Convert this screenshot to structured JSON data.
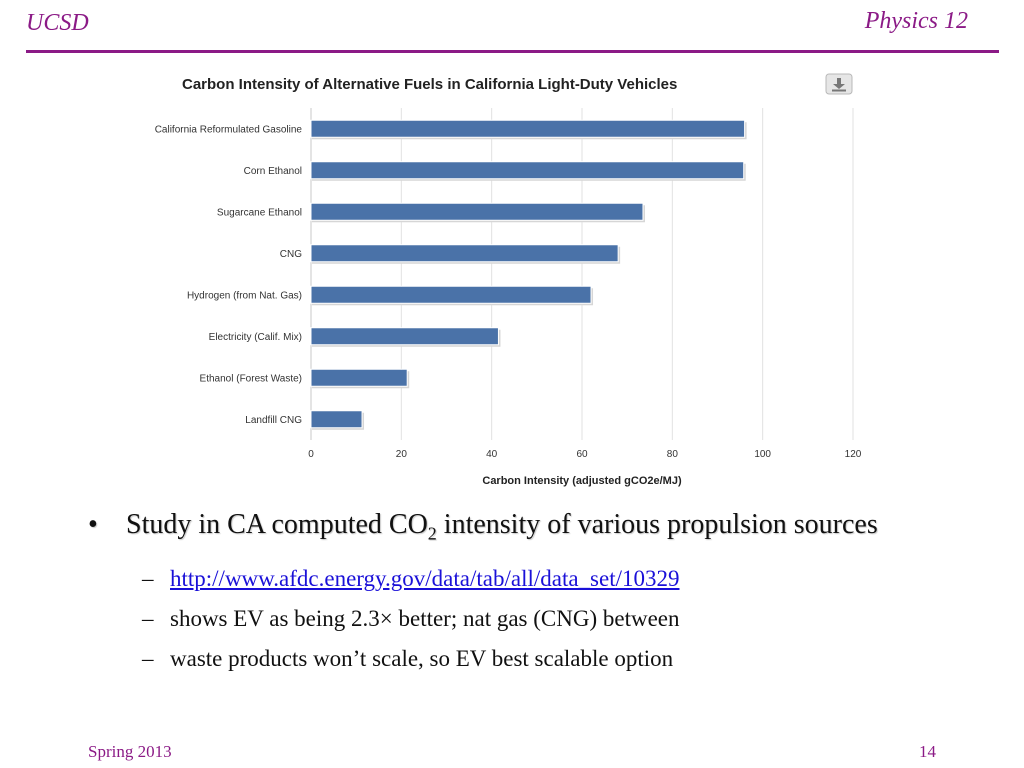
{
  "slide": {
    "header_left": "UCSD",
    "header_right": "Physics 12",
    "footer_left": "Spring 2013",
    "footer_right": "14"
  },
  "chart_data": {
    "type": "bar",
    "orientation": "horizontal",
    "title": "Carbon Intensity of Alternative Fuels in California Light-Duty Vehicles",
    "xlabel": "Carbon Intensity (adjusted gCO2e/MJ)",
    "ylabel": "",
    "xlim": [
      0,
      120
    ],
    "xticks": [
      0,
      20,
      40,
      60,
      80,
      100,
      120
    ],
    "grid": true,
    "bar_color": "#4a72a8",
    "categories": [
      "California Reformulated Gasoline",
      "Corn Ethanol",
      "Sugarcane Ethanol",
      "CNG",
      "Hydrogen (from Nat. Gas)",
      "Electricity (Calif. Mix)",
      "Ethanol (Forest Waste)",
      "Landfill CNG"
    ],
    "values": [
      96,
      95.8,
      73.5,
      68,
      62,
      41.5,
      21.3,
      11.3
    ]
  },
  "bullets": {
    "main_prefix": "Study in CA computed CO",
    "main_sub": "2",
    "main_suffix": " intensity of various propulsion sources",
    "sub_items": [
      {
        "text": "http://www.afdc.energy.gov/data/tab/all/data_set/10329",
        "is_link": true
      },
      {
        "text": "shows EV as being 2.3× better; nat gas (CNG) between",
        "is_link": false
      },
      {
        "text": "waste products won’t scale, so EV best scalable option",
        "is_link": false
      }
    ]
  }
}
